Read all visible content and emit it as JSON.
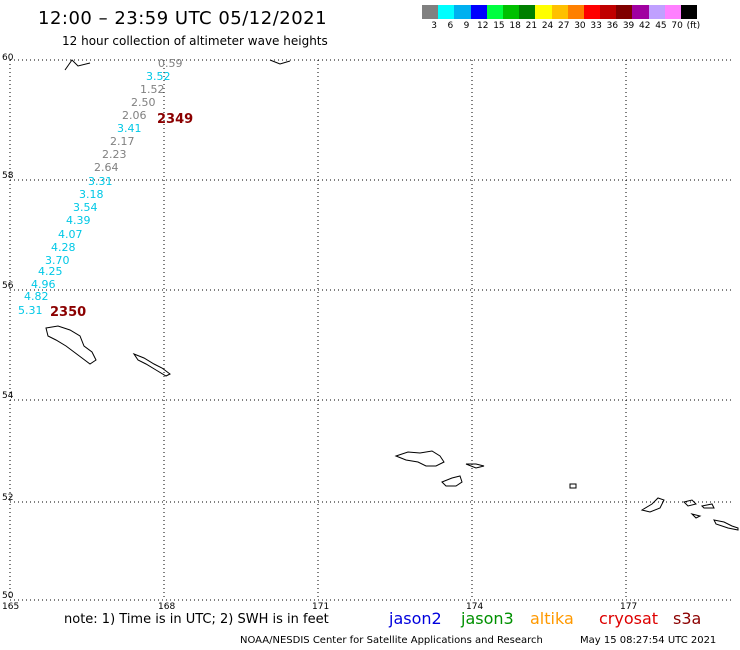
{
  "header": {
    "title": "12:00 – 23:59 UTC 05/12/2021",
    "subtitle": "12 hour collection of altimeter wave heights"
  },
  "legend": {
    "colors": [
      "#808080",
      "#00ffff",
      "#00b0f0",
      "#0000ff",
      "#00ff40",
      "#00c000",
      "#008000",
      "#ffff00",
      "#ffc000",
      "#ff8000",
      "#ff0000",
      "#c00000",
      "#800000",
      "#a000a0",
      "#c0a0ff",
      "#ff80ff",
      "#000000"
    ],
    "labels": [
      "3",
      "6",
      "9",
      "12",
      "15",
      "18",
      "21",
      "24",
      "27",
      "30",
      "33",
      "36",
      "39",
      "42",
      "45",
      "70",
      "(ft)"
    ]
  },
  "axes": {
    "lat_labels": [
      "60",
      "58",
      "56",
      "54",
      "52",
      "50"
    ],
    "lon_labels": [
      "165",
      "168",
      "171",
      "174",
      "177"
    ]
  },
  "track": {
    "points": [
      {
        "label": "0.59",
        "color": "#808080"
      },
      {
        "label": "3.52",
        "color": "#00c8e6"
      },
      {
        "label": "1.52",
        "color": "#808080"
      },
      {
        "label": "2.50",
        "color": "#808080"
      },
      {
        "label": "2.06",
        "color": "#808080"
      },
      {
        "label": "3.41",
        "color": "#00c8e6"
      },
      {
        "label": "2.17",
        "color": "#808080"
      },
      {
        "label": "2.23",
        "color": "#808080"
      },
      {
        "label": "2.64",
        "color": "#808080"
      },
      {
        "label": "3.31",
        "color": "#00c8e6"
      },
      {
        "label": "3.18",
        "color": "#00c8e6"
      },
      {
        "label": "3.54",
        "color": "#00c8e6"
      },
      {
        "label": "4.39",
        "color": "#00c8e6"
      },
      {
        "label": "4.07",
        "color": "#00c8e6"
      },
      {
        "label": "4.28",
        "color": "#00c8e6"
      },
      {
        "label": "3.70",
        "color": "#00c8e6"
      },
      {
        "label": "4.25",
        "color": "#00c8e6"
      },
      {
        "label": "4.96",
        "color": "#00c8e6"
      },
      {
        "label": "4.82",
        "color": "#00c8e6"
      },
      {
        "label": "5.31",
        "color": "#00c8e6"
      }
    ],
    "pass_start": "2349",
    "pass_end": "2350"
  },
  "footer": {
    "note": "note: 1) Time is in UTC; 2) SWH is in feet",
    "satellites": [
      {
        "name": "jason2",
        "color": "#0000dd"
      },
      {
        "name": "jason3",
        "color": "#009000"
      },
      {
        "name": "altika",
        "color": "#ff9900"
      },
      {
        "name": "cryosat",
        "color": "#dd0000"
      },
      {
        "name": "s3a",
        "color": "#8b0000"
      }
    ],
    "credit": "NOAA/NESDIS Center for Satellite Applications and Research",
    "timestamp": "May 15 08:27:54 UTC 2021"
  }
}
